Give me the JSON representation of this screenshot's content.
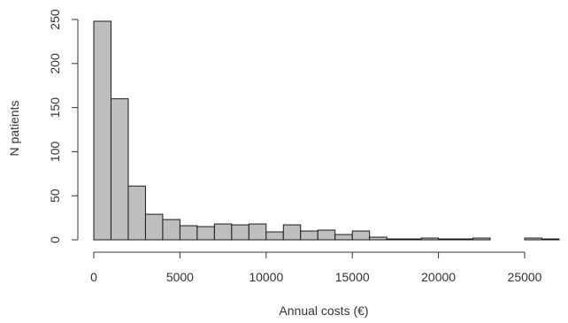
{
  "chart_data": {
    "type": "bar",
    "title": "",
    "xlabel": "Annual costs (€)",
    "ylabel": "N patients",
    "bin_width": 1000,
    "bins": [
      {
        "start": 0,
        "end": 1000,
        "count": 248
      },
      {
        "start": 1000,
        "end": 2000,
        "count": 160
      },
      {
        "start": 2000,
        "end": 3000,
        "count": 61
      },
      {
        "start": 3000,
        "end": 4000,
        "count": 29
      },
      {
        "start": 4000,
        "end": 5000,
        "count": 23
      },
      {
        "start": 5000,
        "end": 6000,
        "count": 16
      },
      {
        "start": 6000,
        "end": 7000,
        "count": 15
      },
      {
        "start": 7000,
        "end": 8000,
        "count": 18
      },
      {
        "start": 8000,
        "end": 9000,
        "count": 17
      },
      {
        "start": 9000,
        "end": 10000,
        "count": 18
      },
      {
        "start": 10000,
        "end": 11000,
        "count": 9
      },
      {
        "start": 11000,
        "end": 12000,
        "count": 17
      },
      {
        "start": 12000,
        "end": 13000,
        "count": 10
      },
      {
        "start": 13000,
        "end": 14000,
        "count": 11
      },
      {
        "start": 14000,
        "end": 15000,
        "count": 6
      },
      {
        "start": 15000,
        "end": 16000,
        "count": 10
      },
      {
        "start": 16000,
        "end": 17000,
        "count": 3
      },
      {
        "start": 17000,
        "end": 18000,
        "count": 1
      },
      {
        "start": 18000,
        "end": 19000,
        "count": 1
      },
      {
        "start": 19000,
        "end": 20000,
        "count": 2
      },
      {
        "start": 20000,
        "end": 21000,
        "count": 1
      },
      {
        "start": 21000,
        "end": 22000,
        "count": 1
      },
      {
        "start": 22000,
        "end": 23000,
        "count": 2
      },
      {
        "start": 23000,
        "end": 24000,
        "count": 0
      },
      {
        "start": 24000,
        "end": 25000,
        "count": 0
      },
      {
        "start": 25000,
        "end": 26000,
        "count": 2
      },
      {
        "start": 26000,
        "end": 27000,
        "count": 1
      }
    ],
    "xlim": [
      0,
      27000
    ],
    "ylim": [
      0,
      250
    ],
    "x_ticks": [
      "0",
      "5000",
      "10000",
      "15000",
      "20000",
      "25000"
    ],
    "y_ticks": [
      "0",
      "50",
      "100",
      "150",
      "200",
      "250"
    ],
    "grid": false,
    "colors": {
      "bar_fill": "#bebebe",
      "bar_stroke": "#1a1a1a",
      "axis": "#333333"
    }
  }
}
